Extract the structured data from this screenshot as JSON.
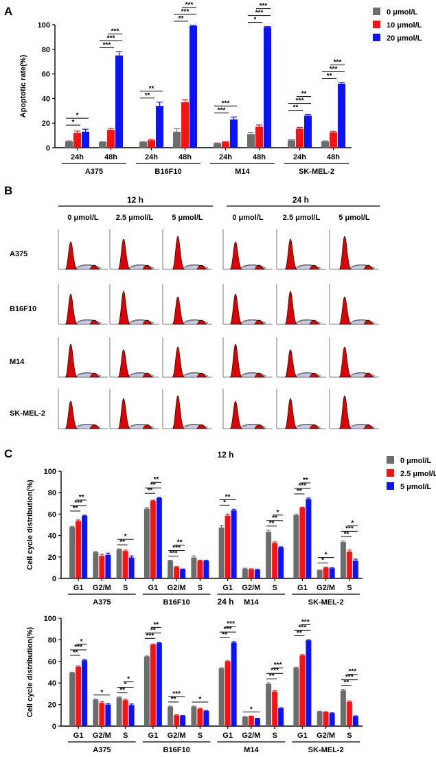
{
  "colors": {
    "s0": "#6d6d6d",
    "s1": "#ff1111",
    "s2": "#0a12ff",
    "flow_fill": "#dd0000",
    "flow_band": "#c9c9e6"
  },
  "chart_data": [
    {
      "panel": "A",
      "type": "bar",
      "ylabel": "Apoptotic rate(%)",
      "ylim": [
        0,
        100
      ],
      "yticks": [
        0,
        20,
        40,
        60,
        80,
        100
      ],
      "legend": [
        "0 μmol/L",
        "10 μmol/L",
        "20 μmol/L"
      ],
      "legend_position": "top-right",
      "groups": [
        {
          "name": "A375",
          "bars": [
            {
              "label": "24h",
              "values": [
                5,
                12,
                13
              ],
              "errors": [
                0.5,
                1.5,
                2
              ],
              "sig": [
                "*",
                "*"
              ]
            },
            {
              "label": "48h",
              "values": [
                4.5,
                14.5,
                75
              ],
              "errors": [
                0.5,
                1,
                3
              ],
              "sig": [
                "***",
                "***",
                "***"
              ]
            }
          ]
        },
        {
          "name": "B16F10",
          "bars": [
            {
              "label": "24h",
              "values": [
                4.5,
                6,
                34
              ],
              "errors": [
                0.5,
                0.8,
                3
              ],
              "sig": [
                "**",
                "**"
              ]
            },
            {
              "label": "48h",
              "values": [
                13,
                37,
                99
              ],
              "errors": [
                2.5,
                2,
                0.5
              ],
              "sig": [
                "**",
                "***",
                "***"
              ]
            }
          ]
        },
        {
          "name": "M14",
          "bars": [
            {
              "label": "24h",
              "values": [
                3.5,
                4.5,
                23
              ],
              "errors": [
                0.3,
                0.5,
                2
              ],
              "sig": [
                "***",
                "***"
              ]
            },
            {
              "label": "48h",
              "values": [
                11,
                17,
                98
              ],
              "errors": [
                1.5,
                1.5,
                0.5
              ],
              "sig": [
                "*",
                "***",
                "***"
              ]
            }
          ]
        },
        {
          "name": "SK-MEL-2",
          "bars": [
            {
              "label": "24h",
              "values": [
                6,
                15.5,
                26
              ],
              "errors": [
                0.5,
                1,
                1
              ],
              "sig": [
                "**",
                "***",
                "**"
              ]
            },
            {
              "label": "48h",
              "values": [
                5,
                12.5,
                52
              ],
              "errors": [
                0.5,
                0.8,
                0.8
              ],
              "sig": [
                "**",
                "***",
                "***"
              ]
            }
          ]
        }
      ]
    },
    {
      "panel": "C (12 h)",
      "type": "bar",
      "title": "12 h",
      "ylabel": "Cell cycle distribution(%)",
      "ylim": [
        0,
        100
      ],
      "yticks": [
        0,
        20,
        40,
        60,
        80,
        100
      ],
      "legend": [
        "0 μmol/L",
        "2.5 μmol/L",
        "5 μmol/L"
      ],
      "legend_position": "top-right",
      "groups": [
        {
          "name": "A375",
          "bars": [
            {
              "label": "G1",
              "values": [
                48,
                53.5,
                58.5
              ],
              "errors": [
                0.5,
                1,
                0.5
              ],
              "sig": [
                "**",
                "***",
                "**"
              ]
            },
            {
              "label": "G2/M",
              "values": [
                24.5,
                21,
                22
              ],
              "errors": [
                0.5,
                1.5,
                1.5
              ],
              "sig": []
            },
            {
              "label": "S",
              "values": [
                27,
                25.5,
                19.5
              ],
              "errors": [
                0.5,
                1,
                1.5
              ],
              "sig": [
                "**",
                "*"
              ]
            }
          ]
        },
        {
          "name": "B16F10",
          "bars": [
            {
              "label": "G1",
              "values": [
                65,
                72.5,
                75
              ],
              "errors": [
                1,
                0.5,
                0.5
              ],
              "sig": [
                "**",
                "**",
                "**"
              ]
            },
            {
              "label": "G2/M",
              "values": [
                16.5,
                10.5,
                8.5
              ],
              "errors": [
                0.5,
                0.5,
                0.3
              ],
              "sig": [
                "***",
                "***",
                "**"
              ]
            },
            {
              "label": "S",
              "values": [
                19.5,
                16.5,
                16.5
              ],
              "errors": [
                1.5,
                0.5,
                0.5
              ],
              "sig": []
            }
          ]
        },
        {
          "name": "M14",
          "bars": [
            {
              "label": "G1",
              "values": [
                47.5,
                58.5,
                63.5
              ],
              "errors": [
                2,
                1.5,
                1
              ],
              "sig": [
                "*",
                "**"
              ]
            },
            {
              "label": "G2/M",
              "values": [
                9,
                8.5,
                8
              ],
              "errors": [
                0.5,
                0.5,
                0.5
              ],
              "sig": []
            },
            {
              "label": "S",
              "values": [
                43.5,
                33,
                29
              ],
              "errors": [
                1.5,
                1,
                0.5
              ],
              "sig": [
                "**",
                "**",
                "*"
              ]
            }
          ]
        },
        {
          "name": "SK-MEL-2",
          "bars": [
            {
              "label": "G1",
              "values": [
                59,
                66,
                74
              ],
              "errors": [
                1,
                0.5,
                1
              ],
              "sig": [
                "**",
                "***",
                "**"
              ]
            },
            {
              "label": "G2/M",
              "values": [
                7.5,
                10,
                9.5
              ],
              "errors": [
                0.3,
                0.5,
                0.5
              ],
              "sig": [
                "*",
                "*"
              ]
            },
            {
              "label": "S",
              "values": [
                34,
                25,
                16.5
              ],
              "errors": [
                1,
                1.5,
                1.5
              ],
              "sig": [
                "**",
                "***",
                "*"
              ]
            }
          ]
        }
      ]
    },
    {
      "panel": "C (24 h)",
      "type": "bar",
      "title": "24 h",
      "ylabel": "Cell cycle distribution(%)",
      "ylim": [
        0,
        100
      ],
      "yticks": [
        0,
        20,
        40,
        60,
        80,
        100
      ],
      "groups": [
        {
          "name": "A375",
          "bars": [
            {
              "label": "G1",
              "values": [
                49.5,
                55,
                61
              ],
              "errors": [
                0.5,
                0.8,
                0.8
              ],
              "sig": [
                "**",
                "***",
                "*"
              ]
            },
            {
              "label": "G2/M",
              "values": [
                24.5,
                21.5,
                20
              ],
              "errors": [
                0.5,
                1,
                0.8
              ],
              "sig": [
                "*"
              ]
            },
            {
              "label": "S",
              "values": [
                26.5,
                24,
                19.5
              ],
              "errors": [
                0.5,
                0.8,
                1
              ],
              "sig": [
                "**",
                "*",
                "*"
              ]
            }
          ]
        },
        {
          "name": "B16F10",
          "bars": [
            {
              "label": "G1",
              "values": [
                64.5,
                75.5,
                77
              ],
              "errors": [
                0.5,
                0.5,
                0.5
              ],
              "sig": [
                "***",
                "**",
                "**"
              ]
            },
            {
              "label": "G2/M",
              "values": [
                18,
                10,
                9.5
              ],
              "errors": [
                0.5,
                0.5,
                0.3
              ],
              "sig": [
                "**",
                "***"
              ]
            },
            {
              "label": "S",
              "values": [
                18,
                16,
                14
              ],
              "errors": [
                0.5,
                0.5,
                0.5
              ],
              "sig": [
                "*"
              ]
            }
          ]
        },
        {
          "name": "M14",
          "bars": [
            {
              "label": "G1",
              "values": [
                53.5,
                60,
                77.5
              ],
              "errors": [
                0.5,
                0.5,
                0.8
              ],
              "sig": [
                "**",
                "***",
                "***"
              ]
            },
            {
              "label": "G2/M",
              "values": [
                8.5,
                9,
                7
              ],
              "errors": [
                0.3,
                0.3,
                0.3
              ],
              "sig": [
                "*"
              ]
            },
            {
              "label": "S",
              "values": [
                39,
                32,
                16.5
              ],
              "errors": [
                1,
                0.8,
                0.5
              ],
              "sig": [
                "**",
                "***",
                "***"
              ]
            }
          ]
        },
        {
          "name": "SK-MEL-2",
          "bars": [
            {
              "label": "G1",
              "values": [
                54,
                65.5,
                79.5
              ],
              "errors": [
                0.5,
                0.8,
                0.5
              ],
              "sig": [
                "**",
                "***",
                "***"
              ]
            },
            {
              "label": "G2/M",
              "values": [
                13.5,
                13,
                12
              ],
              "errors": [
                0.3,
                0.3,
                0.3
              ],
              "sig": []
            },
            {
              "label": "S",
              "values": [
                33,
                22.5,
                9
              ],
              "errors": [
                1,
                0.8,
                0.5
              ],
              "sig": [
                "**",
                "***",
                "***"
              ]
            }
          ]
        }
      ]
    }
  ],
  "flow_panel": {
    "label": "B",
    "time_headers": [
      "12 h",
      "24 h"
    ],
    "conc_headers": [
      "0 μmol/L",
      "2.5 μmol/L",
      "5 μmol/L",
      "0 μmol/L",
      "2.5 μmol/L",
      "5 μmol/L"
    ],
    "rows": [
      "A375",
      "B16F10",
      "M14",
      "SK-MEL-2"
    ]
  },
  "panel_labels": [
    "A",
    "B",
    "C"
  ]
}
